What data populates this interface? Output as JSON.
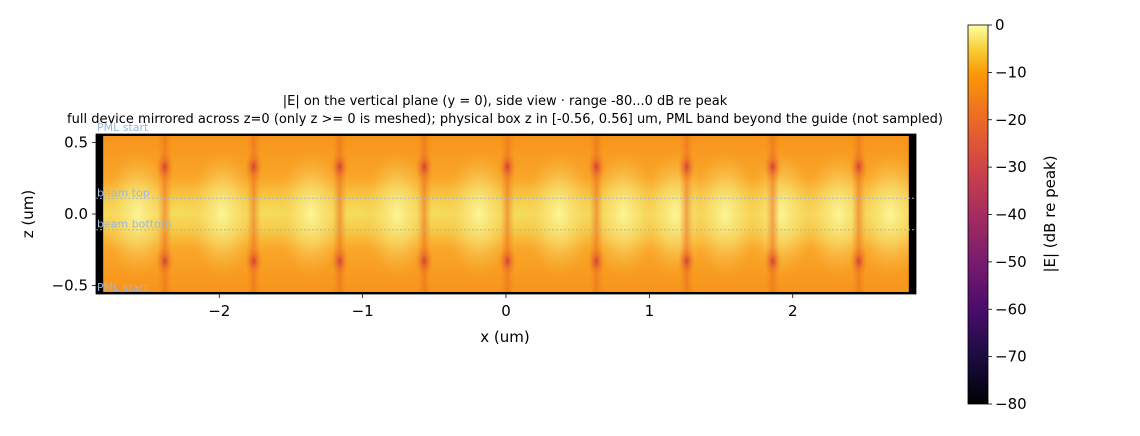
{
  "chart_data": {
    "type": "heatmap",
    "title": "|E| on the vertical plane (y = 0), side view · range -80...0 dB re peak",
    "subtitle": "full device mirrored across z=0 (only z >= 0 is meshed); physical box z in [-0.56, 0.56] um, PML band beyond the guide (not sampled)",
    "xlabel": "x (um)",
    "ylabel": "z (um)",
    "xlim": [
      -2.86,
      2.86
    ],
    "ylim": [
      -0.56,
      0.56
    ],
    "x_ticks": [
      {
        "value": -2,
        "label": "−2"
      },
      {
        "value": -1,
        "label": "−1"
      },
      {
        "value": 0,
        "label": "0"
      },
      {
        "value": 1,
        "label": "1"
      },
      {
        "value": 2,
        "label": "2"
      }
    ],
    "y_ticks": [
      {
        "value": 0.5,
        "label": "0.5"
      },
      {
        "value": 0.0,
        "label": "0.0"
      },
      {
        "value": -0.5,
        "label": "−0.5"
      }
    ],
    "colorbar": {
      "label": "|E| (dB re peak)",
      "range": [
        -80,
        0
      ],
      "colormap": "inferno",
      "ticks": [
        {
          "value": 0,
          "label": "0"
        },
        {
          "value": -10,
          "label": "−10"
        },
        {
          "value": -20,
          "label": "−20"
        },
        {
          "value": -30,
          "label": "−30"
        },
        {
          "value": -40,
          "label": "−40"
        },
        {
          "value": -50,
          "label": "−50"
        },
        {
          "value": -60,
          "label": "−60"
        },
        {
          "value": -70,
          "label": "−70"
        },
        {
          "value": -80,
          "label": "−80"
        }
      ]
    },
    "annotations": [
      {
        "text": "PML start",
        "z": 0.56
      },
      {
        "text": "beam top",
        "z": 0.11
      },
      {
        "text": "beam bottom",
        "z": -0.11
      },
      {
        "text": "PML start",
        "z": -0.56
      }
    ],
    "field_maxima_x": [
      -2.57,
      -1.98,
      -1.36,
      -0.76,
      -0.19,
      0.37,
      0.82,
      1.18,
      1.53,
      1.92,
      2.32,
      2.68
    ],
    "field_nodes_x": [
      -2.38,
      -1.76,
      -1.16,
      -0.57,
      0.01,
      0.63,
      1.26,
      1.86,
      2.46
    ],
    "pml_x": [
      -2.81,
      2.81
    ],
    "colors": {
      "annotation": "#9ab8e0",
      "pml": "#000000"
    }
  }
}
